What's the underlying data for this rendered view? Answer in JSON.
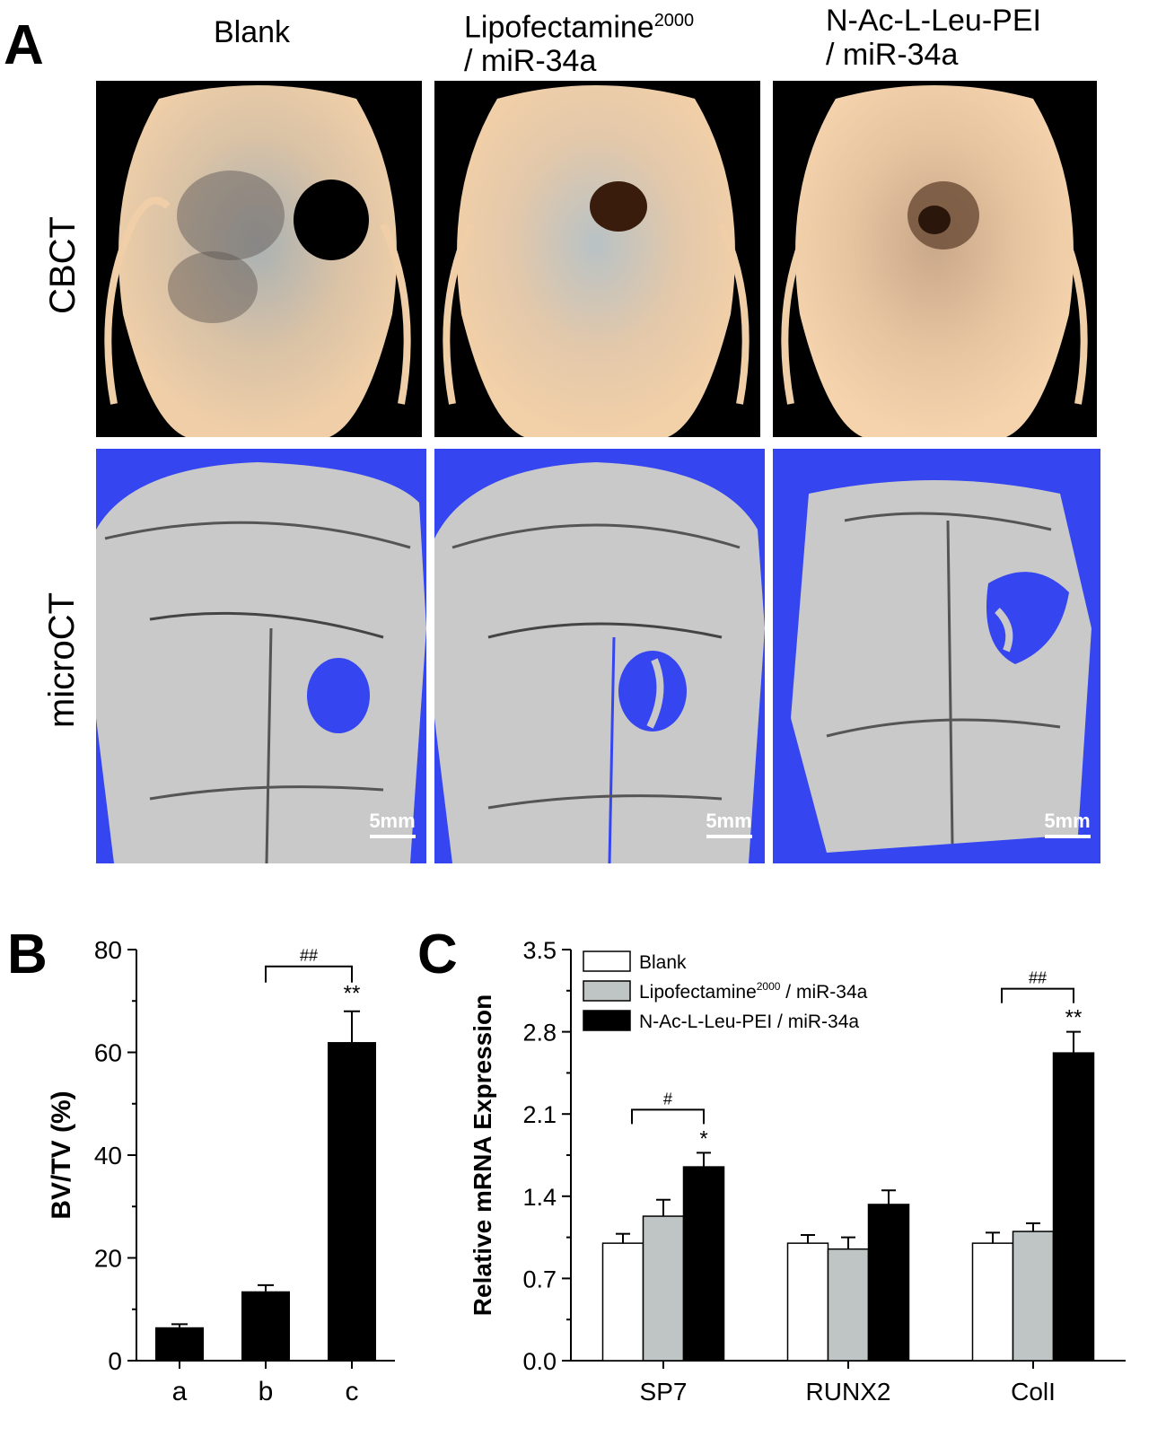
{
  "panel_a": {
    "letter": "A",
    "columns": [
      {
        "line1": "Blank",
        "line2": ""
      },
      {
        "line1": "Lipofectamine",
        "sup": "2000",
        "line2": "/ miR-34a"
      },
      {
        "line1": "N-Ac-L-Leu-PEI",
        "line2": "/ miR-34a"
      }
    ],
    "rows": [
      "CBCT",
      "microCT"
    ],
    "scale_bar": "5mm",
    "colors": {
      "cbct_bg": "#000000",
      "bone": "#e8c7a0",
      "microct_bg": "#3545f0",
      "microct_bone": "#c9c9c9"
    }
  },
  "panel_b": {
    "letter": "B",
    "chart_data": {
      "type": "bar",
      "categories": [
        "a",
        "b",
        "c"
      ],
      "values": [
        6.5,
        13.5,
        62
      ],
      "errors": [
        0.6,
        1.2,
        6
      ],
      "ylabel": "BV/TV (%)",
      "ylim": [
        0,
        80
      ],
      "yticks": [
        0,
        20,
        40,
        60,
        80
      ],
      "annotations": [
        {
          "text": "**",
          "category": "c"
        },
        {
          "text": "##",
          "from": "b",
          "to": "c"
        }
      ],
      "bar_color": "#000000"
    }
  },
  "panel_c": {
    "letter": "C",
    "chart_data": {
      "type": "bar",
      "categories": [
        "SP7",
        "RUNX2",
        "ColI"
      ],
      "ylabel": "Relative mRNA Expression",
      "ylim": [
        0,
        3.5
      ],
      "yticks": [
        "0.0",
        "0.7",
        "1.4",
        "2.1",
        "2.8",
        "3.5"
      ],
      "legend_position": "top-left",
      "series": [
        {
          "name": "Blank",
          "legend_sup": "",
          "legend_tail": "",
          "color": "#ffffff",
          "values": [
            1.0,
            1.0,
            1.0
          ],
          "errors": [
            0.08,
            0.07,
            0.09
          ]
        },
        {
          "name": "Lipofectamine",
          "legend_sup": "2000",
          "legend_tail": " / miR-34a",
          "color": "#bfc4c4",
          "values": [
            1.23,
            0.95,
            1.1
          ],
          "errors": [
            0.14,
            0.1,
            0.07
          ]
        },
        {
          "name": "N-Ac-L-Leu-PEI / miR-34a",
          "legend_sup": "",
          "legend_tail": "",
          "color": "#000000",
          "values": [
            1.65,
            1.33,
            2.62
          ],
          "errors": [
            0.12,
            0.12,
            0.18
          ]
        }
      ],
      "annotations": [
        {
          "text": "*",
          "category": "SP7"
        },
        {
          "text": "#",
          "category": "SP7"
        },
        {
          "text": "**",
          "category": "ColI"
        },
        {
          "text": "##",
          "category": "ColI"
        }
      ]
    }
  }
}
